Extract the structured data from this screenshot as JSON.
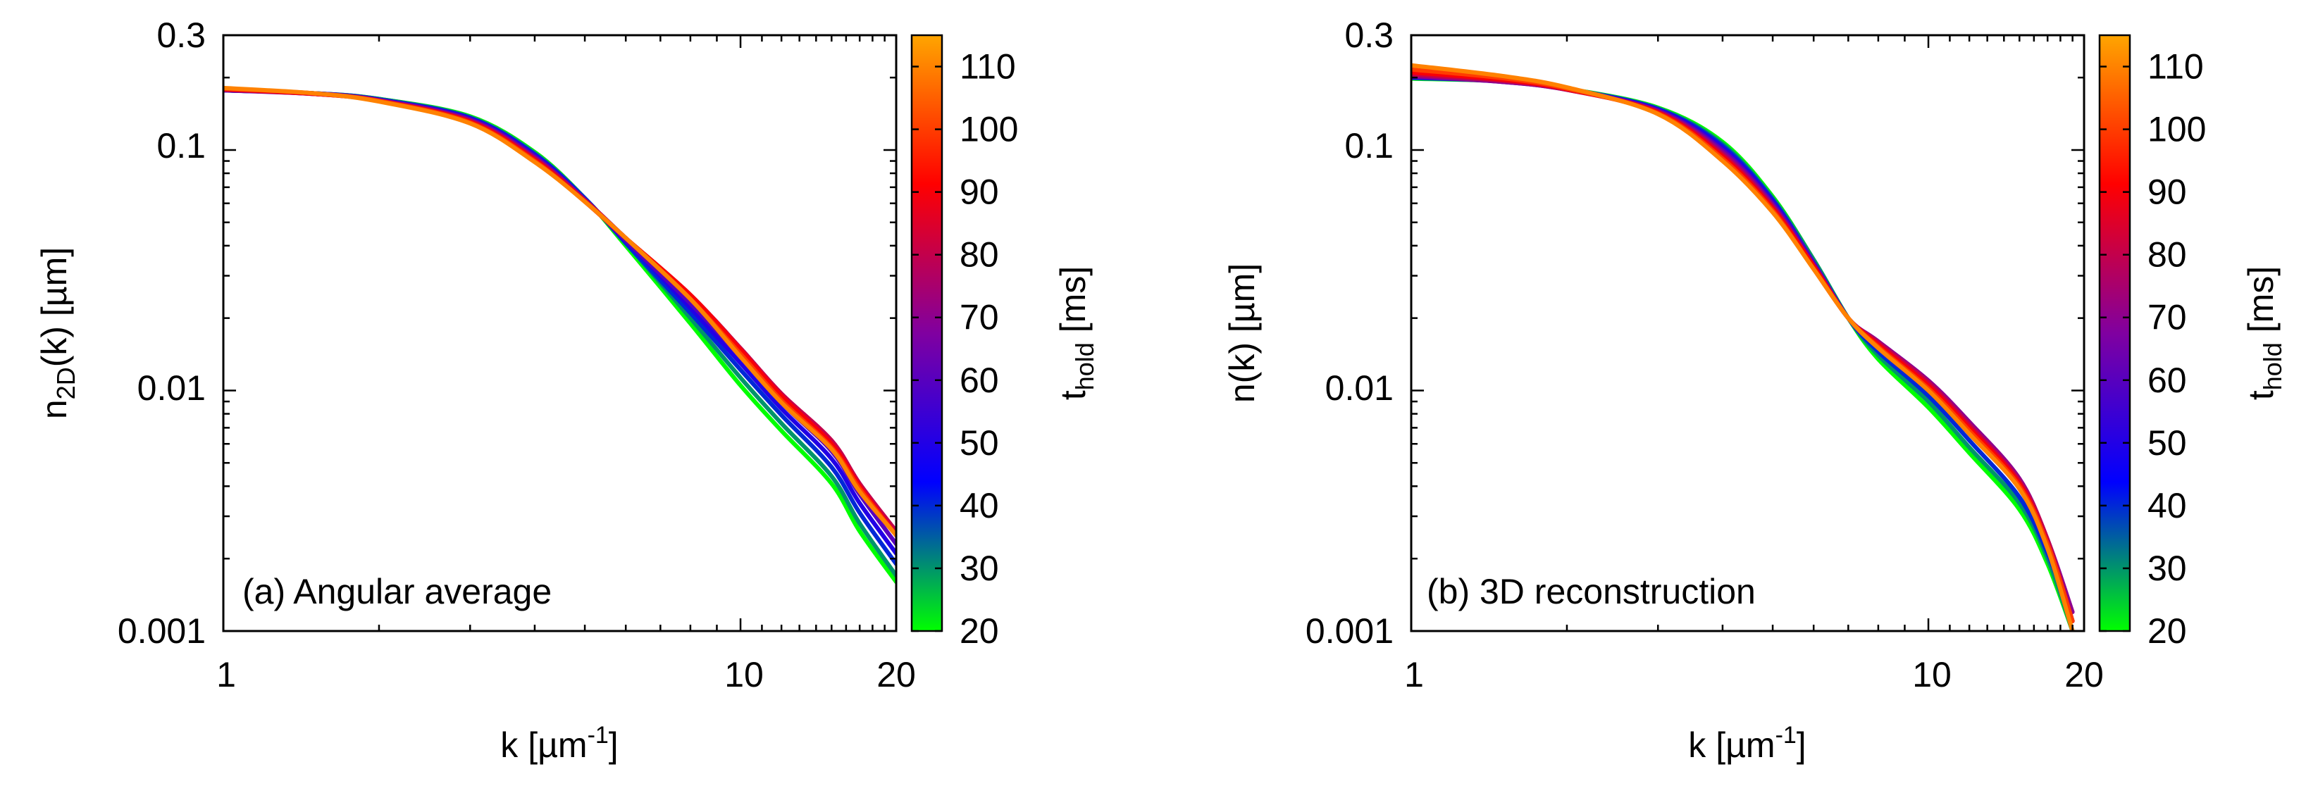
{
  "chart_data": [
    {
      "type": "line",
      "panel_label": "(a) Angular average",
      "xlabel": {
        "base": "k [",
        "mu": "µ",
        "unit": "m",
        "sup": "-1",
        "close": "]"
      },
      "ylabel": {
        "base": "n",
        "sub": "2D",
        "rest": "(k) [",
        "mu": "µ",
        "unit": "m]"
      },
      "xscale": "log",
      "yscale": "log",
      "xlim": [
        1,
        20
      ],
      "ylim": [
        0.001,
        0.3
      ],
      "x_tick_labels": [
        {
          "value": 1,
          "label": "1"
        },
        {
          "value": 10,
          "label": "10"
        },
        {
          "value": 20,
          "label": "20"
        }
      ],
      "y_tick_labels": [
        {
          "value": 0.001,
          "label": "0.001"
        },
        {
          "value": 0.01,
          "label": "0.01"
        },
        {
          "value": 0.1,
          "label": "0.1"
        },
        {
          "value": 0.3,
          "label": "0.3"
        }
      ],
      "colorbar": {
        "label": {
          "base": "t",
          "sub": "hold",
          "rest": " [ms]"
        },
        "range": [
          20,
          115
        ],
        "ticks": [
          20,
          30,
          40,
          50,
          60,
          70,
          80,
          90,
          100,
          110
        ],
        "colormap": [
          "#00ff00",
          "#0000ff",
          "#8000a0",
          "#ff0000",
          "#ffa500"
        ]
      },
      "series": [
        {
          "t_hold": 20,
          "x": [
            1,
            1.5,
            2,
            3,
            4,
            5,
            6,
            8,
            10,
            12,
            15,
            17,
            20
          ],
          "y": [
            0.177,
            0.172,
            0.163,
            0.138,
            0.098,
            0.063,
            0.04,
            0.019,
            0.0105,
            0.0068,
            0.0041,
            0.0026,
            0.0016
          ]
        },
        {
          "t_hold": 30,
          "x": [
            1,
            1.5,
            2,
            3,
            4,
            5,
            6,
            8,
            10,
            12,
            15,
            17,
            20
          ],
          "y": [
            0.177,
            0.172,
            0.163,
            0.137,
            0.097,
            0.063,
            0.041,
            0.02,
            0.0113,
            0.0073,
            0.0044,
            0.0028,
            0.0017
          ]
        },
        {
          "t_hold": 40,
          "x": [
            1,
            1.5,
            2,
            3,
            4,
            5,
            6,
            8,
            10,
            12,
            15,
            17,
            20
          ],
          "y": [
            0.177,
            0.172,
            0.162,
            0.136,
            0.096,
            0.063,
            0.041,
            0.021,
            0.0122,
            0.0079,
            0.0048,
            0.0031,
            0.0019
          ]
        },
        {
          "t_hold": 50,
          "x": [
            1,
            1.5,
            2,
            3,
            4,
            5,
            6,
            8,
            10,
            12,
            15,
            17,
            20
          ],
          "y": [
            0.177,
            0.172,
            0.162,
            0.135,
            0.095,
            0.062,
            0.042,
            0.022,
            0.013,
            0.0084,
            0.0052,
            0.0034,
            0.0021
          ]
        },
        {
          "t_hold": 60,
          "x": [
            1,
            1.5,
            2,
            3,
            4,
            5,
            6,
            8,
            10,
            12,
            15,
            17,
            20
          ],
          "y": [
            0.177,
            0.171,
            0.161,
            0.134,
            0.094,
            0.062,
            0.042,
            0.023,
            0.0138,
            0.0089,
            0.0056,
            0.0037,
            0.0023
          ]
        },
        {
          "t_hold": 70,
          "x": [
            1,
            1.5,
            2,
            3,
            4,
            5,
            6,
            8,
            10,
            12,
            15,
            17,
            20
          ],
          "y": [
            0.178,
            0.171,
            0.161,
            0.133,
            0.093,
            0.062,
            0.043,
            0.024,
            0.0145,
            0.0094,
            0.006,
            0.004,
            0.0025
          ]
        },
        {
          "t_hold": 80,
          "x": [
            1,
            1.5,
            2,
            3,
            4,
            5,
            6,
            8,
            10,
            12,
            15,
            17,
            20
          ],
          "y": [
            0.178,
            0.171,
            0.16,
            0.132,
            0.092,
            0.062,
            0.043,
            0.025,
            0.015,
            0.0097,
            0.0062,
            0.0041,
            0.0026
          ]
        },
        {
          "t_hold": 90,
          "x": [
            1,
            1.5,
            2,
            3,
            4,
            5,
            6,
            8,
            10,
            12,
            15,
            17,
            20
          ],
          "y": [
            0.179,
            0.171,
            0.16,
            0.131,
            0.091,
            0.061,
            0.043,
            0.025,
            0.0148,
            0.0095,
            0.006,
            0.004,
            0.0025
          ]
        },
        {
          "t_hold": 100,
          "x": [
            1,
            1.5,
            2,
            3,
            4,
            5,
            6,
            8,
            10,
            12,
            15,
            17,
            20
          ],
          "y": [
            0.18,
            0.172,
            0.16,
            0.13,
            0.09,
            0.061,
            0.043,
            0.024,
            0.0142,
            0.0091,
            0.0058,
            0.0039,
            0.0025
          ]
        },
        {
          "t_hold": 110,
          "x": [
            1,
            1.5,
            2,
            3,
            4,
            5,
            6,
            8,
            10,
            12,
            15,
            17,
            20
          ],
          "y": [
            0.181,
            0.172,
            0.159,
            0.129,
            0.089,
            0.061,
            0.043,
            0.024,
            0.0138,
            0.0089,
            0.0057,
            0.0038,
            0.0025
          ]
        }
      ]
    },
    {
      "type": "line",
      "panel_label": "(b) 3D reconstruction",
      "xlabel": {
        "base": "k [",
        "mu": "µ",
        "unit": "m",
        "sup": "-1",
        "close": "]"
      },
      "ylabel": {
        "base": "n(k) [",
        "mu": "µ",
        "unit": "m]"
      },
      "xscale": "log",
      "yscale": "log",
      "xlim": [
        1,
        20
      ],
      "ylim": [
        0.001,
        0.3
      ],
      "x_tick_labels": [
        {
          "value": 1,
          "label": "1"
        },
        {
          "value": 10,
          "label": "10"
        },
        {
          "value": 20,
          "label": "20"
        }
      ],
      "y_tick_labels": [
        {
          "value": 0.001,
          "label": "0.001"
        },
        {
          "value": 0.01,
          "label": "0.01"
        },
        {
          "value": 0.1,
          "label": "0.1"
        },
        {
          "value": 0.3,
          "label": "0.3"
        }
      ],
      "colorbar": {
        "label": {
          "base": "t",
          "sub": "hold",
          "rest": " [ms]"
        },
        "range": [
          20,
          115
        ],
        "ticks": [
          20,
          30,
          40,
          50,
          60,
          70,
          80,
          90,
          100,
          110
        ],
        "colormap": [
          "#00ff00",
          "#0000ff",
          "#8000a0",
          "#ff0000",
          "#ffa500"
        ]
      },
      "series": [
        {
          "t_hold": 20,
          "x": [
            1,
            1.5,
            2,
            3,
            4,
            5,
            6,
            7,
            8,
            10,
            12,
            15,
            17,
            19
          ],
          "y": [
            0.198,
            0.193,
            0.18,
            0.15,
            0.108,
            0.064,
            0.035,
            0.02,
            0.0135,
            0.0085,
            0.0055,
            0.0032,
            0.0019,
            0.001
          ]
        },
        {
          "t_hold": 30,
          "x": [
            1,
            1.5,
            2,
            3,
            4,
            5,
            6,
            7,
            8,
            10,
            12,
            15,
            17,
            19
          ],
          "y": [
            0.199,
            0.193,
            0.18,
            0.149,
            0.106,
            0.063,
            0.035,
            0.02,
            0.014,
            0.009,
            0.0058,
            0.0034,
            0.002,
            0.001
          ]
        },
        {
          "t_hold": 40,
          "x": [
            1,
            1.5,
            2,
            3,
            4,
            5,
            6,
            7,
            8,
            10,
            12,
            15,
            17,
            19
          ],
          "y": [
            0.2,
            0.193,
            0.179,
            0.148,
            0.104,
            0.062,
            0.034,
            0.02,
            0.0145,
            0.0095,
            0.0062,
            0.0036,
            0.0021,
            0.0011
          ]
        },
        {
          "t_hold": 50,
          "x": [
            1,
            1.5,
            2,
            3,
            4,
            5,
            6,
            7,
            8,
            10,
            12,
            15,
            17,
            19
          ],
          "y": [
            0.201,
            0.193,
            0.179,
            0.147,
            0.102,
            0.061,
            0.034,
            0.02,
            0.015,
            0.01,
            0.0066,
            0.0039,
            0.0022,
            0.0011
          ]
        },
        {
          "t_hold": 60,
          "x": [
            1,
            1.5,
            2,
            3,
            4,
            5,
            6,
            7,
            8,
            10,
            12,
            15,
            17,
            19
          ],
          "y": [
            0.202,
            0.192,
            0.178,
            0.146,
            0.1,
            0.06,
            0.034,
            0.02,
            0.0155,
            0.0105,
            0.007,
            0.0041,
            0.0023,
            0.0011
          ]
        },
        {
          "t_hold": 70,
          "x": [
            1,
            1.5,
            2,
            3,
            4,
            5,
            6,
            7,
            8,
            10,
            12,
            15,
            17,
            19
          ],
          "y": [
            0.203,
            0.192,
            0.178,
            0.145,
            0.098,
            0.059,
            0.033,
            0.02,
            0.016,
            0.011,
            0.0074,
            0.0043,
            0.0024,
            0.0012
          ]
        },
        {
          "t_hold": 80,
          "x": [
            1,
            1.5,
            2,
            3,
            4,
            5,
            6,
            7,
            8,
            10,
            12,
            15,
            17,
            19
          ],
          "y": [
            0.206,
            0.194,
            0.178,
            0.144,
            0.096,
            0.058,
            0.033,
            0.02,
            0.0158,
            0.0108,
            0.0072,
            0.0042,
            0.0024,
            0.0011
          ]
        },
        {
          "t_hold": 90,
          "x": [
            1,
            1.5,
            2,
            3,
            4,
            5,
            6,
            7,
            8,
            10,
            12,
            15,
            17,
            19
          ],
          "y": [
            0.21,
            0.196,
            0.179,
            0.143,
            0.094,
            0.057,
            0.033,
            0.02,
            0.0155,
            0.0105,
            0.007,
            0.0041,
            0.0023,
            0.0011
          ]
        },
        {
          "t_hold": 100,
          "x": [
            1,
            1.5,
            2,
            3,
            4,
            5,
            6,
            7,
            8,
            10,
            12,
            15,
            17,
            19
          ],
          "y": [
            0.216,
            0.199,
            0.18,
            0.142,
            0.092,
            0.056,
            0.032,
            0.02,
            0.0152,
            0.0102,
            0.0068,
            0.004,
            0.0023,
            0.0011
          ]
        },
        {
          "t_hold": 110,
          "x": [
            1,
            1.5,
            2,
            3,
            4,
            5,
            6,
            7,
            8,
            10,
            12,
            15,
            17,
            19
          ],
          "y": [
            0.225,
            0.203,
            0.182,
            0.141,
            0.09,
            0.055,
            0.032,
            0.02,
            0.015,
            0.01,
            0.0066,
            0.0039,
            0.0022,
            0.001
          ]
        }
      ]
    }
  ]
}
